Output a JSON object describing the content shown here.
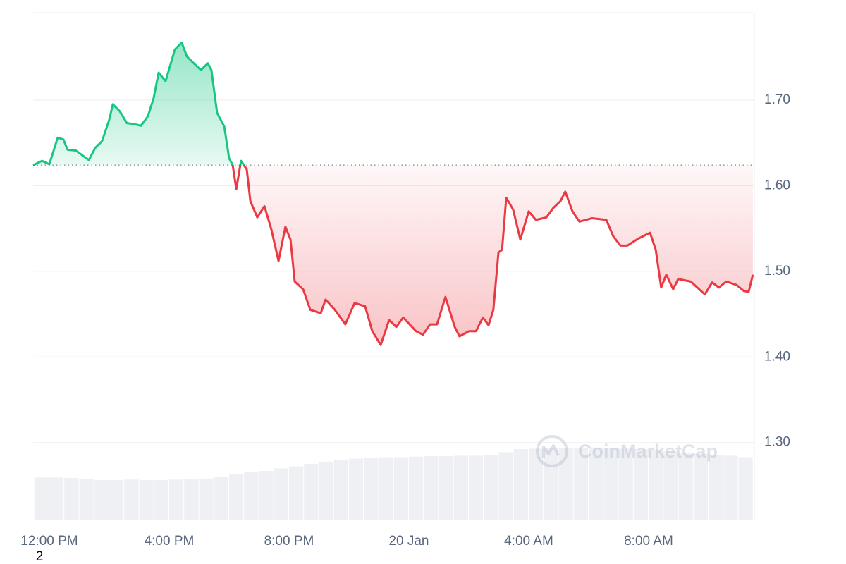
{
  "chart_data": {
    "type": "baseline-line",
    "x": [
      -0.54,
      -0.24,
      0,
      0.28,
      0.47,
      0.61,
      0.89,
      1.08,
      1.32,
      1.53,
      1.76,
      2,
      2.12,
      2.35,
      2.59,
      2.82,
      3.06,
      3.29,
      3.48,
      3.65,
      3.88,
      4.19,
      4.42,
      4.59,
      4.82,
      5.06,
      5.29,
      5.41,
      5.6,
      5.84,
      6,
      6.12,
      6.24,
      6.4,
      6.59,
      6.71,
      6.94,
      7.18,
      7.41,
      7.65,
      7.88,
      8.05,
      8.19,
      8.47,
      8.71,
      9.06,
      9.22,
      9.53,
      9.88,
      10.19,
      10.54,
      10.78,
      11.06,
      11.34,
      11.58,
      11.81,
      12.24,
      12.47,
      12.71,
      12.94,
      13.22,
      13.53,
      13.69,
      14,
      14.24,
      14.47,
      14.66,
      14.82,
      14.99,
      15.11,
      15.25,
      15.48,
      15.72,
      16,
      16.24,
      16.59,
      16.82,
      17.06,
      17.22,
      17.46,
      17.69,
      18.12,
      18.59,
      18.82,
      19.06,
      19.29,
      19.65,
      20.05,
      20.24,
      20.42,
      20.59,
      20.82,
      20.99,
      21.41,
      21.69,
      21.88,
      22.12,
      22.35,
      22.59,
      22.94,
      23.18,
      23.34,
      23.48
    ],
    "values": [
      1.624,
      1.629,
      1.625,
      1.656,
      1.654,
      1.642,
      1.641,
      1.636,
      1.63,
      1.644,
      1.652,
      1.677,
      1.695,
      1.687,
      1.673,
      1.672,
      1.67,
      1.681,
      1.702,
      1.732,
      1.722,
      1.759,
      1.767,
      1.751,
      1.743,
      1.735,
      1.743,
      1.735,
      1.685,
      1.669,
      1.632,
      1.624,
      1.596,
      1.629,
      1.619,
      1.582,
      1.563,
      1.576,
      1.549,
      1.512,
      1.552,
      1.537,
      1.488,
      1.479,
      1.455,
      1.451,
      1.467,
      1.455,
      1.438,
      1.463,
      1.459,
      1.43,
      1.414,
      1.443,
      1.435,
      1.446,
      1.43,
      1.426,
      1.438,
      1.438,
      1.47,
      1.435,
      1.424,
      1.43,
      1.43,
      1.446,
      1.437,
      1.455,
      1.522,
      1.525,
      1.586,
      1.572,
      1.537,
      1.57,
      1.56,
      1.563,
      1.574,
      1.582,
      1.593,
      1.57,
      1.558,
      1.562,
      1.56,
      1.541,
      1.53,
      1.53,
      1.538,
      1.545,
      1.525,
      1.481,
      1.496,
      1.479,
      1.491,
      1.488,
      1.479,
      1.473,
      1.487,
      1.481,
      1.488,
      1.484,
      1.477,
      1.476,
      1.496
    ],
    "baseline": 1.624,
    "up_color": "#16c784",
    "down_color": "#ea3943",
    "volume": {
      "axis": "y2",
      "color": "#eef0f4",
      "x": [
        -0.5,
        0,
        0.5,
        1,
        1.5,
        2,
        2.5,
        3,
        3.5,
        4,
        4.5,
        5,
        5.5,
        6,
        6.5,
        7,
        7.5,
        8,
        8.5,
        9,
        9.5,
        10,
        10.5,
        11,
        11.5,
        12,
        12.5,
        13,
        13.5,
        14,
        14.5,
        15,
        15.5,
        16,
        16.5,
        17,
        17.5,
        18,
        18.5,
        19,
        19.5,
        20,
        20.5,
        21,
        21.5,
        22,
        22.5,
        23
      ],
      "values": [
        8.3,
        8.3,
        8.2,
        8.0,
        7.8,
        7.8,
        7.9,
        7.8,
        7.8,
        7.9,
        8.0,
        8.1,
        8.4,
        9.0,
        9.4,
        9.6,
        10.1,
        10.5,
        11.0,
        11.4,
        11.7,
        12.0,
        12.2,
        12.3,
        12.3,
        12.4,
        12.5,
        12.5,
        12.6,
        12.6,
        12.7,
        13.3,
        13.9,
        14.0,
        14.1,
        14.1,
        14.2,
        14.2,
        14.1,
        14.0,
        13.9,
        13.8,
        13.5,
        13.2,
        13.0,
        12.8,
        12.6,
        12.3
      ]
    },
    "xlim": [
      -0.54,
      23.53
    ],
    "xticks": [
      {
        "value": 0,
        "label": "12:00 PM"
      },
      {
        "value": 4,
        "label": "4:00 PM"
      },
      {
        "value": 8,
        "label": "8:00 PM"
      },
      {
        "value": 12,
        "label": "20 Jan"
      },
      {
        "value": 16,
        "label": "4:00 AM"
      },
      {
        "value": 20,
        "label": "8:00 AM"
      }
    ],
    "ylim": [
      1.21,
      1.802
    ],
    "yticks": [
      {
        "value": 1.3,
        "label": "1.30"
      },
      {
        "value": 1.4,
        "label": "1.40"
      },
      {
        "value": 1.5,
        "label": "1.50"
      },
      {
        "value": 1.6,
        "label": "1.60"
      },
      {
        "value": 1.7,
        "label": "1.70"
      }
    ],
    "y2lim": [
      0,
      100
    ],
    "grid": true,
    "watermark": "CoinMarketCap",
    "footnote": "2"
  }
}
